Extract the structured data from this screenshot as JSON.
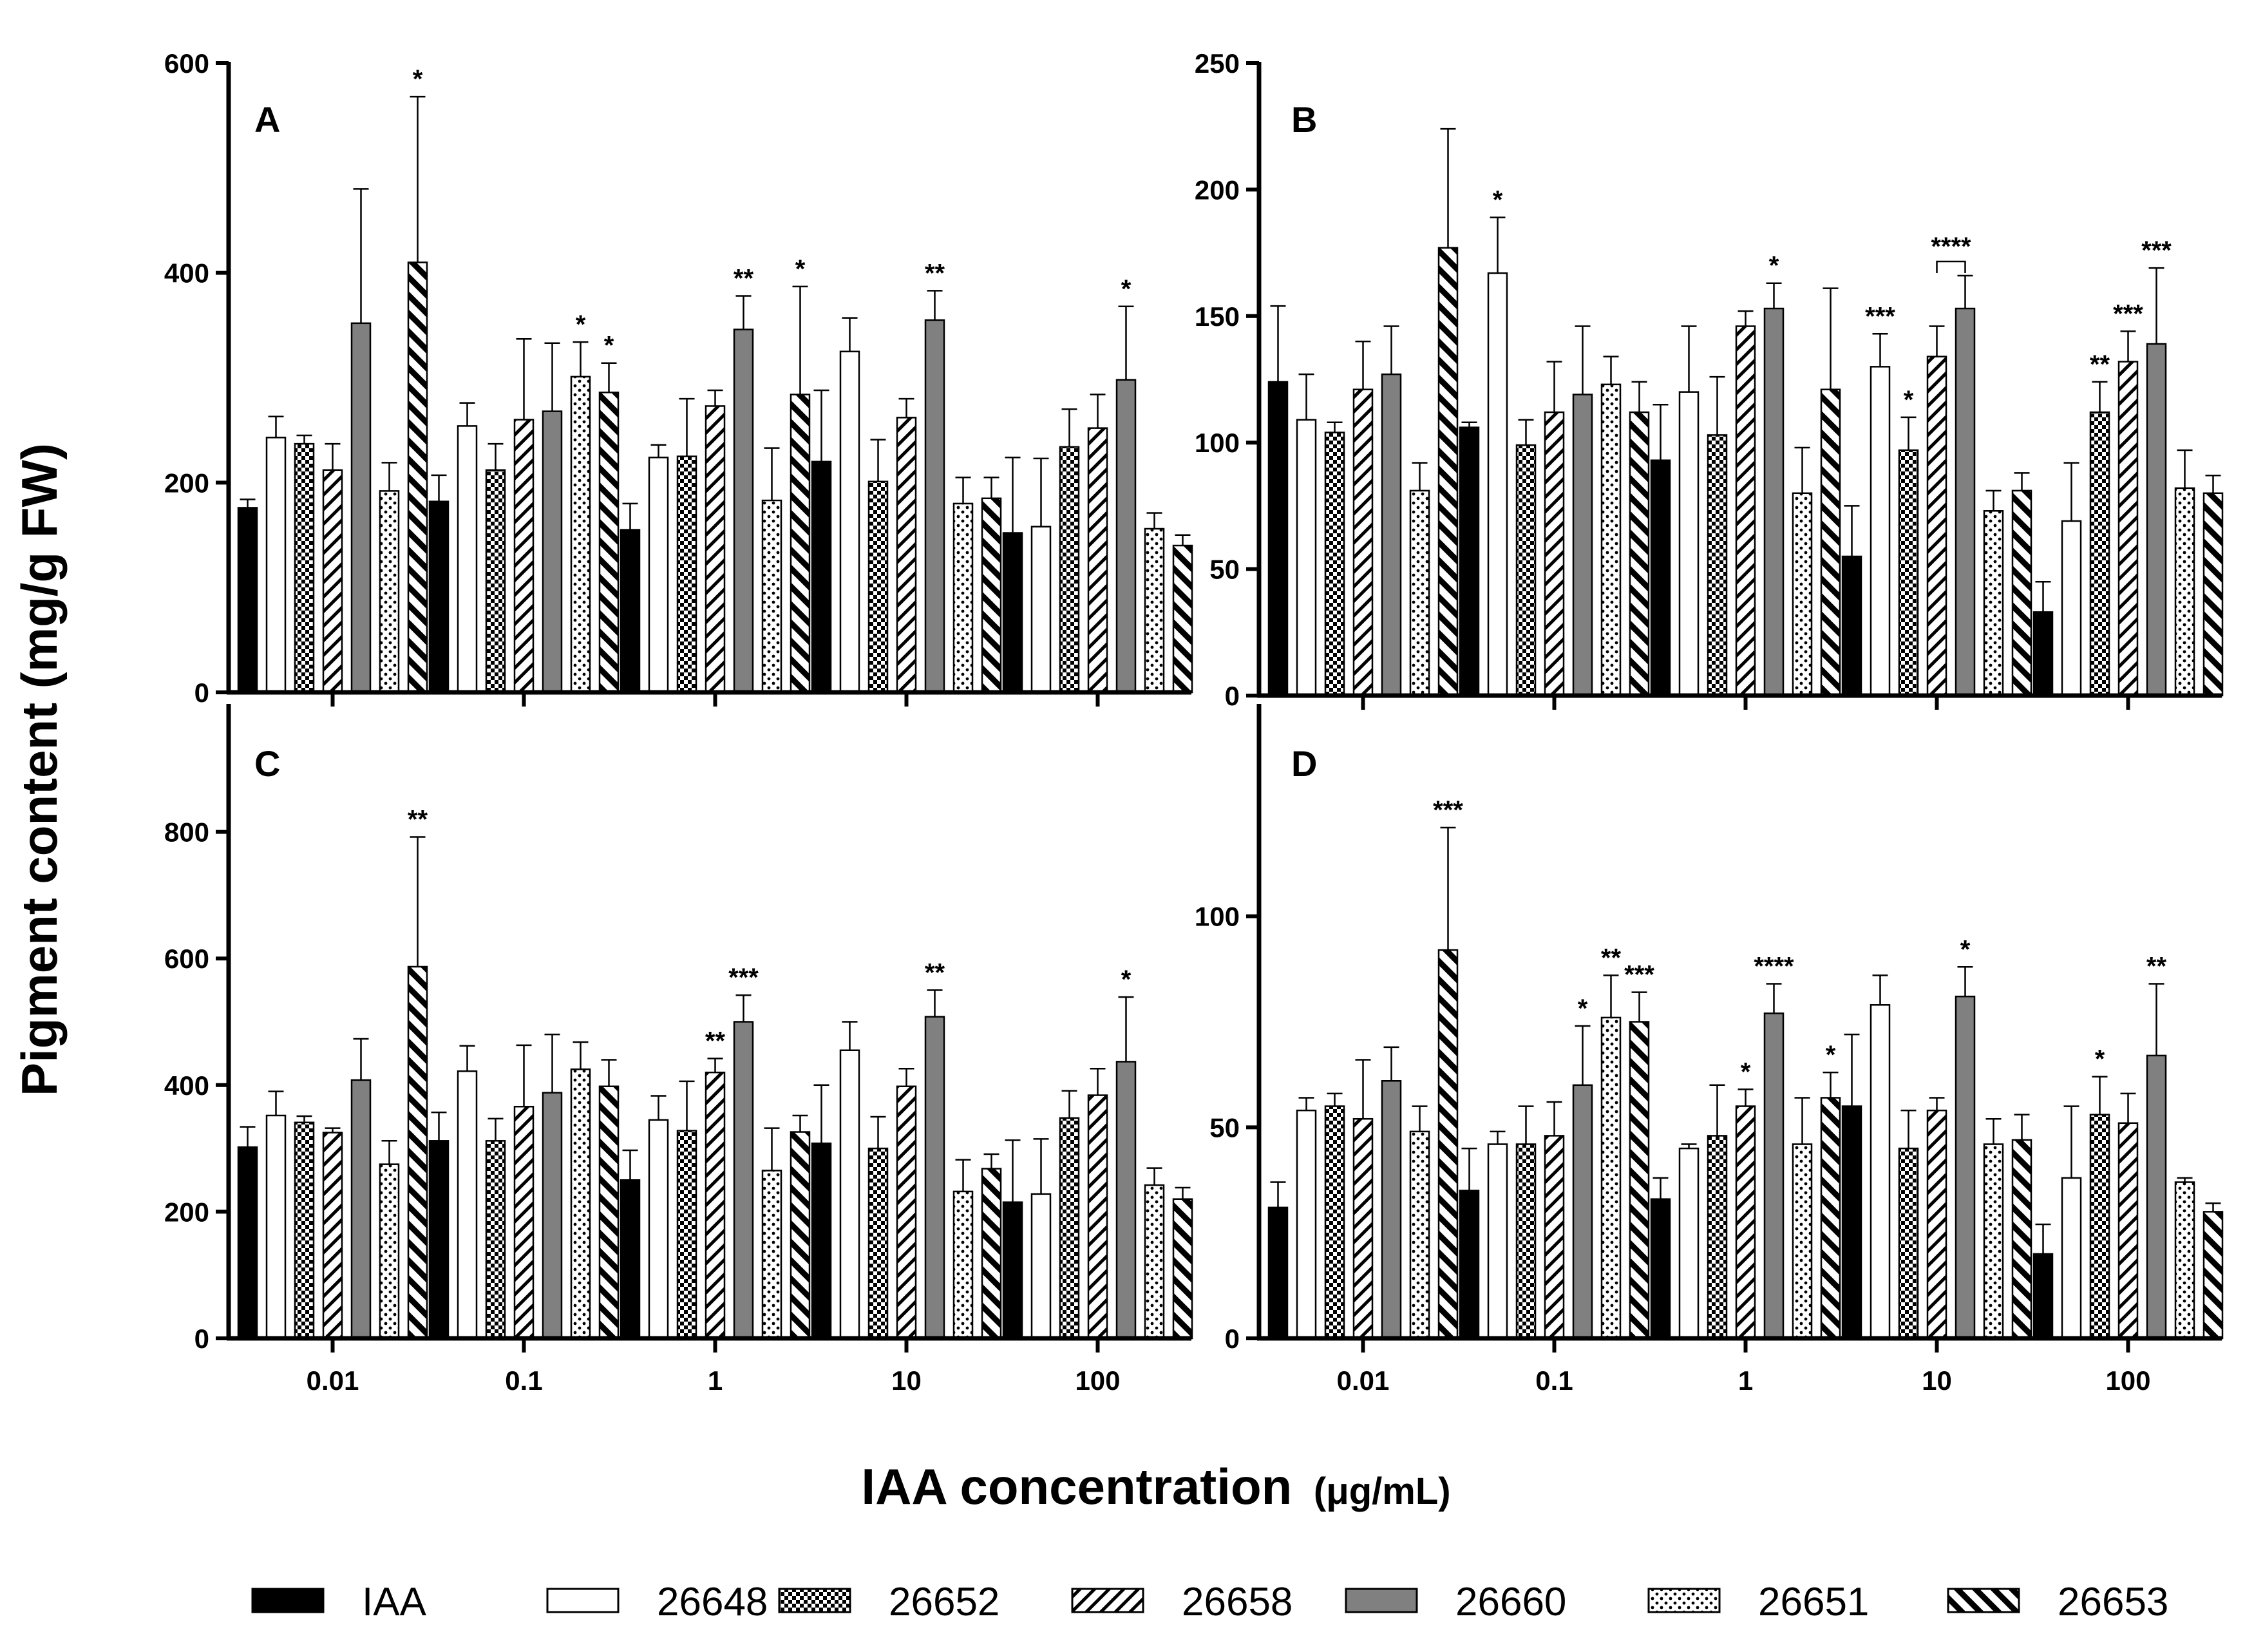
{
  "chart_data": {
    "type": "bar",
    "categories": [
      "0.01",
      "0.1",
      "1",
      "10",
      "100"
    ],
    "xlabel": "IAA concentration",
    "xlabel_unit": "(μg/mL)",
    "ylabel": "Pigment content (mg/g FW)",
    "legend": {
      "position": "bottom",
      "entries": [
        {
          "label": "IAA",
          "pattern": "solid-black"
        },
        {
          "label": "26648",
          "pattern": "white"
        },
        {
          "label": "26652",
          "pattern": "checker"
        },
        {
          "label": "26658",
          "pattern": "diagonal-fwd"
        },
        {
          "label": "26660",
          "pattern": "solid-gray"
        },
        {
          "label": "26651",
          "pattern": "dots"
        },
        {
          "label": "26653",
          "pattern": "diagonal-back"
        }
      ]
    },
    "panels": [
      {
        "label": "A",
        "ylim": [
          0,
          600
        ],
        "yticks": [
          0,
          200,
          400,
          600
        ],
        "series": [
          {
            "name": "IAA",
            "values": [
              176,
              182,
              155,
              220,
              152
            ],
            "errors": [
              8,
              25,
              25,
              68,
              72
            ]
          },
          {
            "name": "26648",
            "values": [
              243,
              254,
              224,
              325,
              158
            ],
            "errors": [
              20,
              22,
              12,
              32,
              65
            ]
          },
          {
            "name": "26652",
            "values": [
              237,
              212,
              225,
              201,
              234
            ],
            "errors": [
              8,
              25,
              55,
              40,
              36
            ]
          },
          {
            "name": "26658",
            "values": [
              212,
              260,
              273,
              262,
              252
            ],
            "errors": [
              25,
              77,
              15,
              18,
              32
            ]
          },
          {
            "name": "26660",
            "values": [
              352,
              268,
              346,
              355,
              298
            ],
            "errors": [
              128,
              65,
              32,
              28,
              70
            ]
          },
          {
            "name": "26651",
            "values": [
              192,
              301,
              183,
              180,
              156
            ],
            "errors": [
              27,
              33,
              50,
              25,
              15
            ]
          },
          {
            "name": "26653",
            "values": [
              410,
              286,
              284,
              185,
              140
            ],
            "errors": [
              158,
              28,
              103,
              20,
              10
            ]
          }
        ],
        "annotations": [
          {
            "group": 0,
            "series": 6,
            "text": "*"
          },
          {
            "group": 1,
            "series": 5,
            "text": "*"
          },
          {
            "group": 1,
            "series": 6,
            "text": "*"
          },
          {
            "group": 2,
            "series": 4,
            "text": "**"
          },
          {
            "group": 2,
            "series": 6,
            "text": "*"
          },
          {
            "group": 3,
            "series": 4,
            "text": "**"
          },
          {
            "group": 4,
            "series": 4,
            "text": "*"
          }
        ]
      },
      {
        "label": "B",
        "ylim": [
          0,
          250
        ],
        "yticks": [
          0,
          50,
          100,
          150,
          200,
          250
        ],
        "series": [
          {
            "name": "IAA",
            "values": [
              124,
              106,
              93,
              55,
              33
            ],
            "errors": [
              30,
              2,
              22,
              20,
              12
            ]
          },
          {
            "name": "26648",
            "values": [
              109,
              167,
              120,
              130,
              69
            ],
            "errors": [
              18,
              22,
              26,
              13,
              23
            ]
          },
          {
            "name": "26652",
            "values": [
              104,
              99,
              103,
              97,
              112
            ],
            "errors": [
              4,
              10,
              23,
              13,
              12
            ]
          },
          {
            "name": "26658",
            "values": [
              121,
              112,
              146,
              134,
              132
            ],
            "errors": [
              19,
              20,
              6,
              12,
              12
            ]
          },
          {
            "name": "26660",
            "values": [
              127,
              119,
              153,
              153,
              139
            ],
            "errors": [
              19,
              27,
              10,
              13,
              30
            ]
          },
          {
            "name": "26651",
            "values": [
              81,
              123,
              80,
              73,
              82
            ],
            "errors": [
              11,
              11,
              18,
              8,
              15
            ]
          },
          {
            "name": "26653",
            "values": [
              177,
              112,
              121,
              81,
              80
            ],
            "errors": [
              47,
              12,
              40,
              7,
              7
            ]
          }
        ],
        "annotations": [
          {
            "group": 1,
            "series": 1,
            "text": "*"
          },
          {
            "group": 2,
            "series": 4,
            "text": "*"
          },
          {
            "group": 3,
            "series": 1,
            "text": "***"
          },
          {
            "group": 3,
            "series": 2,
            "text": "*"
          },
          {
            "group": 3,
            "series": 3,
            "text": "****",
            "bracket_to_series": 4
          },
          {
            "group": 4,
            "series": 2,
            "text": "**"
          },
          {
            "group": 4,
            "series": 3,
            "text": "***"
          },
          {
            "group": 4,
            "series": 4,
            "text": "***"
          }
        ]
      },
      {
        "label": "C",
        "ylim": [
          0,
          1000
        ],
        "yticks": [
          0,
          200,
          400,
          600,
          800
        ],
        "series": [
          {
            "name": "IAA",
            "values": [
              302,
              312,
              250,
              308,
              215
            ],
            "errors": [
              32,
              45,
              47,
              92,
              98
            ]
          },
          {
            "name": "26648",
            "values": [
              352,
              422,
              345,
              455,
              228
            ],
            "errors": [
              38,
              40,
              38,
              45,
              87
            ]
          },
          {
            "name": "26652",
            "values": [
              341,
              312,
              328,
              300,
              348
            ],
            "errors": [
              10,
              35,
              78,
              50,
              43
            ]
          },
          {
            "name": "26658",
            "values": [
              325,
              366,
              420,
              398,
              384
            ],
            "errors": [
              7,
              97,
              22,
              28,
              42
            ]
          },
          {
            "name": "26660",
            "values": [
              408,
              388,
              500,
              508,
              437
            ],
            "errors": [
              65,
              92,
              42,
              42,
              102
            ]
          },
          {
            "name": "26651",
            "values": [
              275,
              425,
              265,
              232,
              242
            ],
            "errors": [
              37,
              43,
              67,
              50,
              27
            ]
          },
          {
            "name": "26653",
            "values": [
              587,
              398,
              326,
              268,
              220
            ],
            "errors": [
              205,
              42,
              26,
              23,
              18
            ]
          }
        ],
        "annotations": [
          {
            "group": 0,
            "series": 6,
            "text": "**"
          },
          {
            "group": 2,
            "series": 3,
            "text": "**"
          },
          {
            "group": 2,
            "series": 4,
            "text": "***"
          },
          {
            "group": 3,
            "series": 4,
            "text": "**"
          },
          {
            "group": 4,
            "series": 4,
            "text": "*"
          }
        ]
      },
      {
        "label": "D",
        "ylim": [
          0,
          150
        ],
        "yticks": [
          0,
          50,
          100
        ],
        "series": [
          {
            "name": "IAA",
            "values": [
              31,
              35,
              33,
              55,
              20
            ],
            "errors": [
              6,
              10,
              5,
              17,
              7
            ]
          },
          {
            "name": "26648",
            "values": [
              54,
              46,
              45,
              79,
              38
            ],
            "errors": [
              3,
              3,
              1,
              7,
              17
            ]
          },
          {
            "name": "26652",
            "values": [
              55,
              46,
              48,
              45,
              53
            ],
            "errors": [
              3,
              9,
              12,
              9,
              9
            ]
          },
          {
            "name": "26658",
            "values": [
              52,
              48,
              55,
              54,
              51
            ],
            "errors": [
              14,
              8,
              4,
              3,
              7
            ]
          },
          {
            "name": "26660",
            "values": [
              61,
              60,
              77,
              81,
              67
            ],
            "errors": [
              8,
              14,
              7,
              7,
              17
            ]
          },
          {
            "name": "26651",
            "values": [
              49,
              76,
              46,
              46,
              37
            ],
            "errors": [
              6,
              10,
              11,
              6,
              1
            ]
          },
          {
            "name": "26653",
            "values": [
              92,
              75,
              57,
              47,
              30
            ],
            "errors": [
              29,
              7,
              6,
              6,
              2
            ]
          }
        ],
        "annotations": [
          {
            "group": 0,
            "series": 6,
            "text": "***"
          },
          {
            "group": 1,
            "series": 4,
            "text": "*"
          },
          {
            "group": 1,
            "series": 5,
            "text": "**"
          },
          {
            "group": 1,
            "series": 6,
            "text": "***"
          },
          {
            "group": 2,
            "series": 3,
            "text": "*"
          },
          {
            "group": 2,
            "series": 4,
            "text": "****"
          },
          {
            "group": 2,
            "series": 6,
            "text": "*"
          },
          {
            "group": 3,
            "series": 4,
            "text": "*"
          },
          {
            "group": 4,
            "series": 2,
            "text": "*"
          },
          {
            "group": 4,
            "series": 4,
            "text": "**"
          }
        ]
      }
    ]
  }
}
